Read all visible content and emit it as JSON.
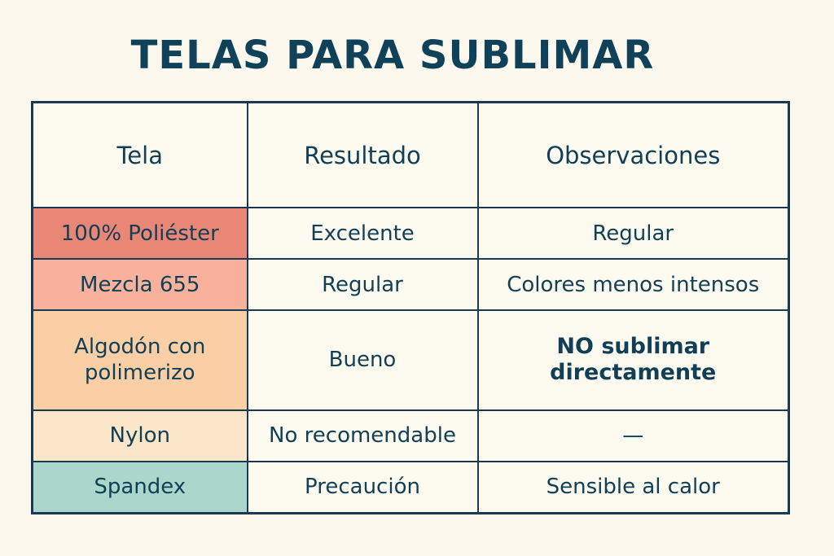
{
  "title": "TELAS PARA SUBLIMAR",
  "table": {
    "headers": [
      "Tela",
      "Resultado",
      "Observaciones"
    ],
    "rows": [
      {
        "tela": "100% Poliéster",
        "resultado": "Excelente",
        "observaciones": "Regular",
        "color": "#ea8675"
      },
      {
        "tela": "Mezcla 655",
        "resultado": "Regular",
        "observaciones": "Colores menos intensos",
        "color": "#f8b29b"
      },
      {
        "tela": "Algodón con polimerizo",
        "resultado": "Bueno",
        "observaciones": "NO sublimar directamente",
        "color": "#fbcfa5"
      },
      {
        "tela": "Nylon",
        "resultado": "No recomendable",
        "observaciones": "—",
        "color": "#fbe6ca"
      },
      {
        "tela": "Spandex",
        "resultado": "Precaución",
        "observaciones": "Sensible al calor",
        "color": "#aad6cc"
      }
    ]
  }
}
